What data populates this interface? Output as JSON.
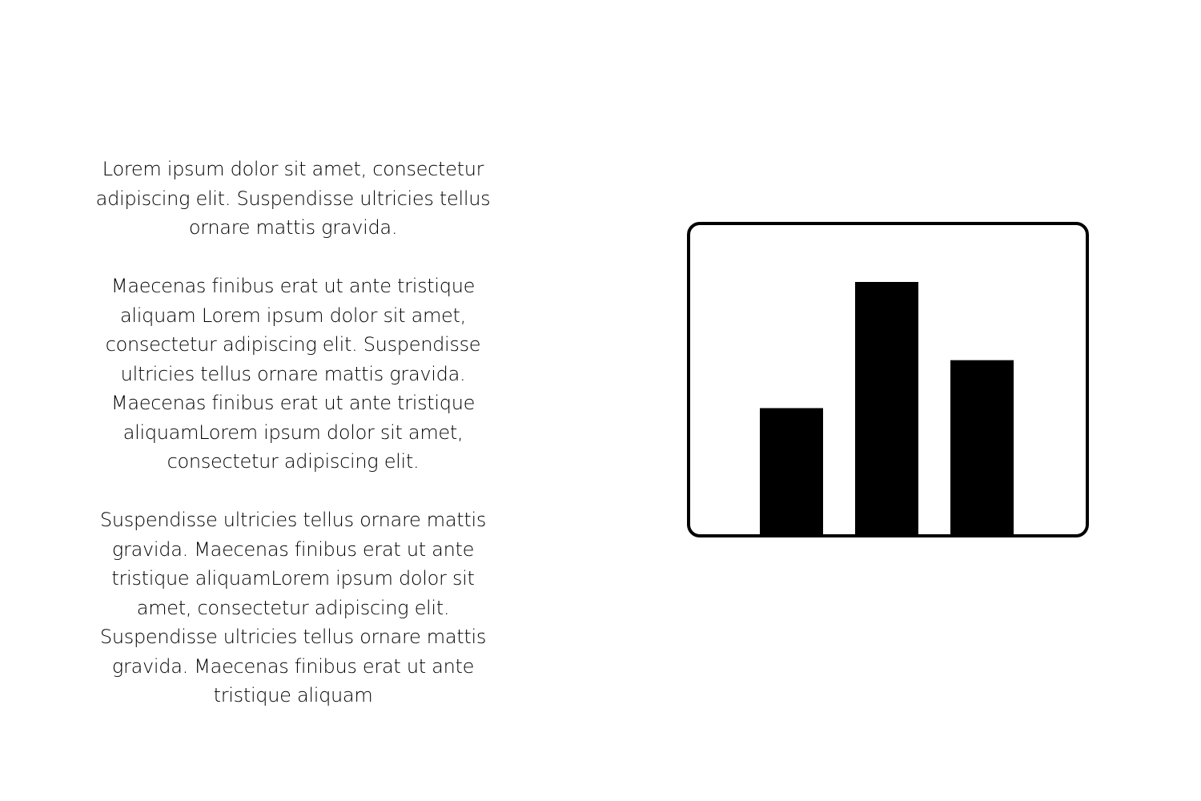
{
  "paragraphs": [
    "Lorem ipsum dolor sit amet, consectetur adipiscing elit. Suspendisse ultricies tellus ornare mattis gravida.",
    "Maecenas finibus erat ut ante tristique aliquam Lorem ipsum dolor sit amet, consectetur adipiscing elit. Suspendisse ultricies tellus ornare mattis gravida. Maecenas finibus erat ut ante tristique aliquamLorem ipsum dolor sit amet, consectetur adipiscing elit.",
    "Suspendisse ultricies tellus ornare mattis gravida. Maecenas finibus erat ut ante tristique aliquamLorem ipsum dolor sit amet, consectetur adipiscing elit. Suspendisse ultricies tellus ornare mattis gravida. Maecenas finibus erat ut ante tristique aliquam"
  ],
  "illustration": {
    "icon": "bar-chart-icon",
    "frame_color": "#000000",
    "bar_color": "#000000",
    "relative_bar_levels": [
      0.5,
      1.0,
      0.69
    ]
  }
}
